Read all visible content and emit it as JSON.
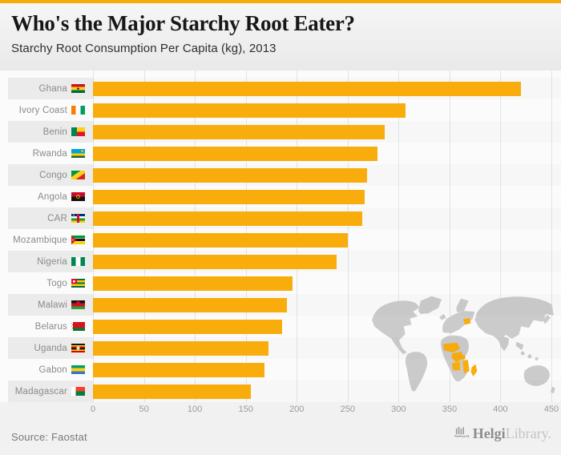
{
  "colors": {
    "accent": "#F9AD0D",
    "bar": "#F9AD0D",
    "gridline": "#e2e4e9",
    "map_gray": "#cbcbcb",
    "map_highlight": "#F9AD0D"
  },
  "header": {
    "title": "Who's the Major Starchy Root Eater?",
    "subtitle": "Starchy Root Consumption Per Capita (kg), 2013"
  },
  "chart_data": {
    "type": "bar",
    "orientation": "horizontal",
    "title": "Who's the Major Starchy Root Eater?",
    "subtitle": "Starchy Root Consumption Per Capita (kg), 2013",
    "unit": "kg per capita",
    "year": 2013,
    "categories": [
      "Ghana",
      "Ivory Coast",
      "Benin",
      "Rwanda",
      "Congo",
      "Angola",
      "CAR",
      "Mozambique",
      "Nigeria",
      "Togo",
      "Malawi",
      "Belarus",
      "Uganda",
      "Gabon",
      "Madagascar"
    ],
    "values": [
      420,
      307,
      286,
      279,
      269,
      267,
      264,
      250,
      239,
      196,
      190,
      186,
      172,
      168,
      155
    ],
    "flags": [
      "ghana",
      "ivory-coast",
      "benin",
      "rwanda",
      "congo",
      "angola",
      "car",
      "mozambique",
      "nigeria",
      "togo",
      "malawi",
      "belarus",
      "uganda",
      "gabon",
      "madagascar"
    ],
    "xlim": [
      0,
      450
    ],
    "x_ticks": [
      0,
      50,
      100,
      150,
      200,
      250,
      300,
      350,
      400,
      450
    ],
    "bar_color": "#F9AD0D",
    "grid": true,
    "legend": false,
    "watermark": "world-map-with-highlighted-countries"
  },
  "footer": {
    "source": "Source: Faostat",
    "logo": {
      "bold": "Helgi",
      "light": "Library."
    }
  }
}
